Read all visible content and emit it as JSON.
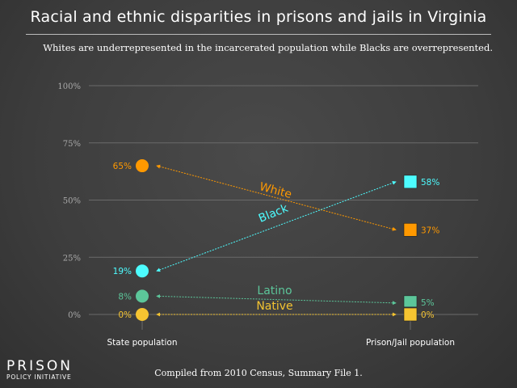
{
  "title": "Racial and ethnic disparities in prisons and jails in Virginia",
  "subtitle": "Whites are underrepresented in the incarcerated population while Blacks are overrepresented.",
  "footer": "Compiled from 2010 Census, Summary File 1.",
  "logo": {
    "line1": "PRISON",
    "line2": "POLICY INITIATIVE"
  },
  "chart_data": {
    "type": "slope",
    "categories": [
      "State population",
      "Prison/Jail population"
    ],
    "yticks": [
      "0%",
      "25%",
      "50%",
      "75%",
      "100%"
    ],
    "ylim": [
      0,
      100
    ],
    "series": [
      {
        "name": "White",
        "values": [
          65,
          37
        ],
        "labels": [
          "65%",
          "37%"
        ],
        "color": "#ff9900"
      },
      {
        "name": "Black",
        "values": [
          19,
          58
        ],
        "labels": [
          "19%",
          "58%"
        ],
        "color": "#4dfcff"
      },
      {
        "name": "Latino",
        "values": [
          8,
          5
        ],
        "labels": [
          "8%",
          "5%"
        ],
        "color": "#5cc69a"
      },
      {
        "name": "Native",
        "values": [
          0,
          0
        ],
        "labels": [
          "0%",
          "0%"
        ],
        "color": "#f5c431"
      }
    ]
  }
}
